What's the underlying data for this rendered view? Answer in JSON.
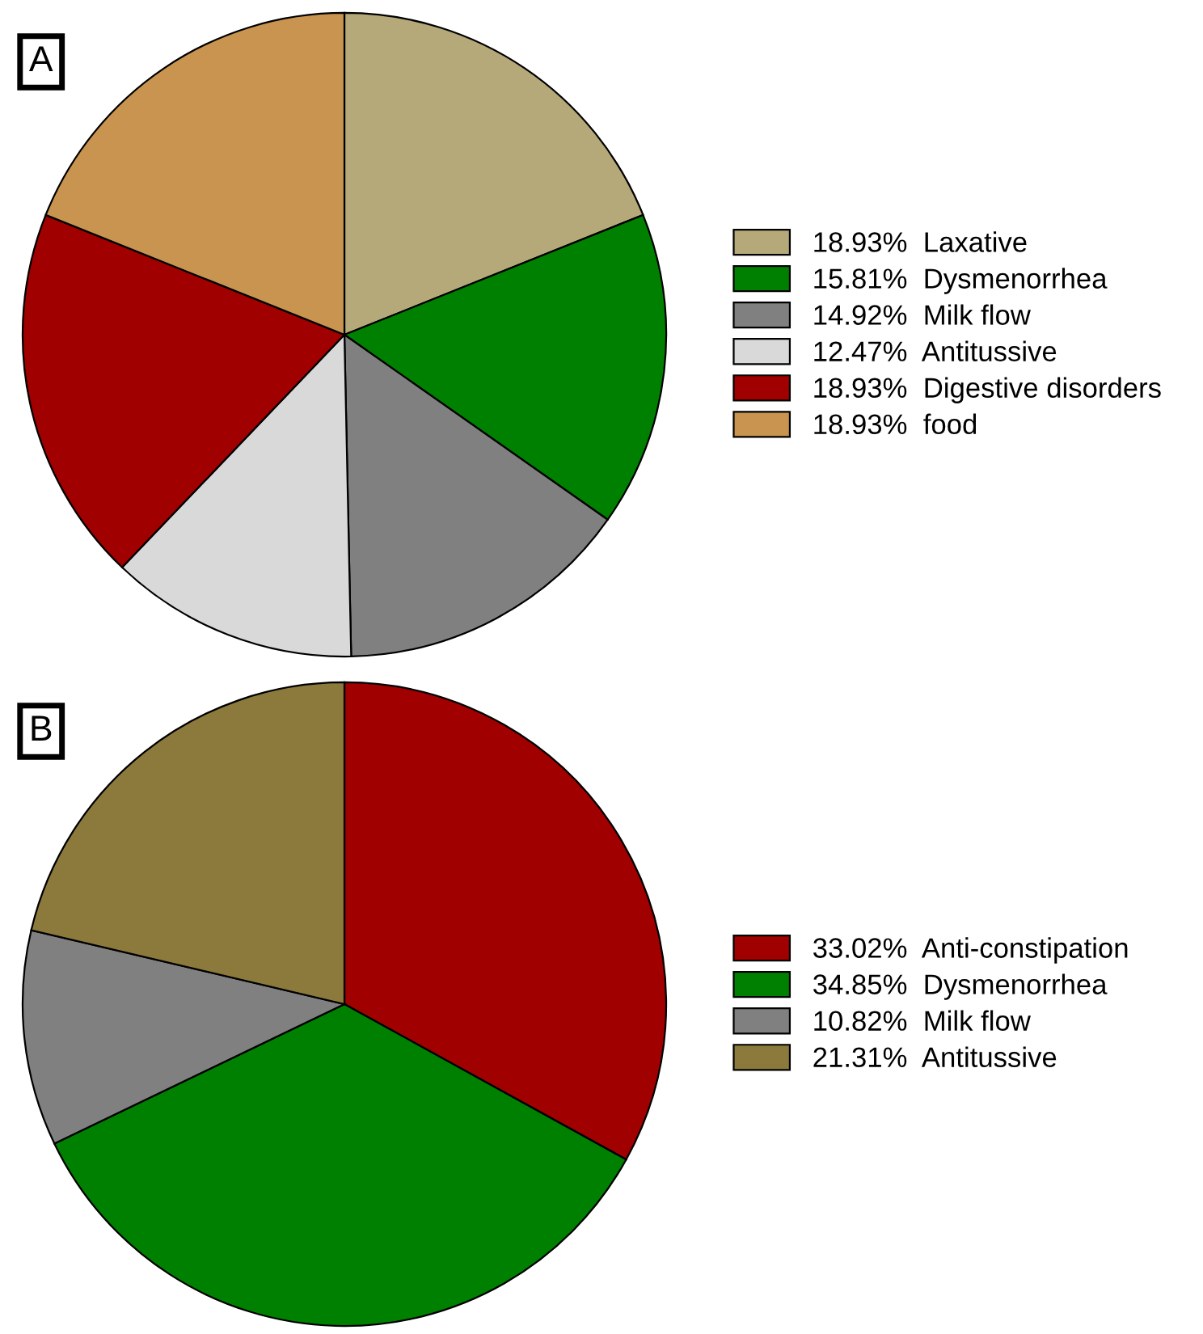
{
  "chart_data": [
    {
      "type": "pie",
      "title": "A",
      "categories": [
        "18.93%  Laxative",
        "15.81%  Dysmenorrhea",
        "14.92%  Milk flow",
        "12.47%  Antitussive",
        "18.93%  Digestive disorders",
        "18.93%  food"
      ],
      "values": [
        18.93,
        15.81,
        14.92,
        12.47,
        18.93,
        18.93
      ],
      "colors": [
        "#b5a97a",
        "#008000",
        "#808080",
        "#d9d9d9",
        "#a00000",
        "#c8944f"
      ],
      "legend": "right"
    },
    {
      "type": "pie",
      "title": "B",
      "categories": [
        "33.02%  Anti-constipation",
        "34.85%  Dysmenorrhea",
        "10.82%  Milk flow",
        "21.31%  Antitussive"
      ],
      "values": [
        33.02,
        34.85,
        10.82,
        21.31
      ],
      "colors": [
        "#a00000",
        "#008000",
        "#808080",
        "#8c7a3c"
      ],
      "legend": "right"
    }
  ]
}
